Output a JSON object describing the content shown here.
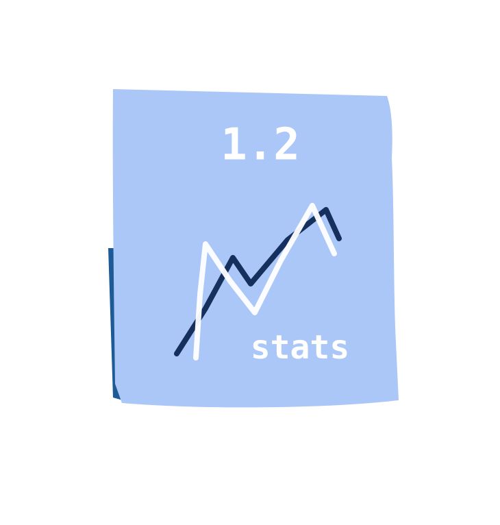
{
  "note": {
    "heading": "1.2",
    "label": "stats"
  }
}
